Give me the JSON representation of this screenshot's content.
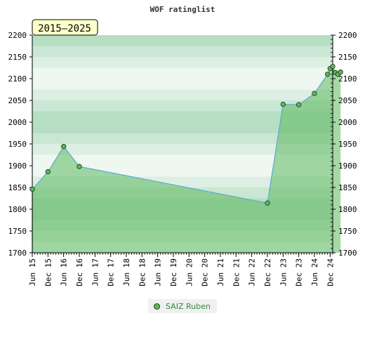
{
  "chart_data": {
    "type": "area",
    "title": "WOF ratinglist",
    "badge": "2015–2025",
    "x_ticks": [
      "Jun 15",
      "Dec 15",
      "Jun 16",
      "Dec 16",
      "Jun 17",
      "Dec 17",
      "Jun 18",
      "Dec 18",
      "Jun 19",
      "Dec 19",
      "Jun 20",
      "Dec 20",
      "Jun 21",
      "Dec 21",
      "Jun 22",
      "Dec 22",
      "Jun 23",
      "Dec 23",
      "Jun 24",
      "Dec 24"
    ],
    "y_ticks": [
      1700,
      1750,
      1800,
      1850,
      1900,
      1950,
      2000,
      2050,
      2100,
      2150,
      2200
    ],
    "ylim": [
      1700,
      2200
    ],
    "xlim": [
      "2015-06",
      "2025-01"
    ],
    "grid": true,
    "legend_position": "bottom-center",
    "series": [
      {
        "name": "SAIZ Ruben",
        "color": "#5aa9d6",
        "fill": "#5cb85c",
        "points": [
          {
            "x": "2015-06",
            "y": 1846
          },
          {
            "x": "2015-12",
            "y": 1886
          },
          {
            "x": "2016-06",
            "y": 1944
          },
          {
            "x": "2016-12",
            "y": 1898
          },
          {
            "x": "2022-12",
            "y": 1814
          },
          {
            "x": "2023-06",
            "y": 2041
          },
          {
            "x": "2023-12",
            "y": 2040
          },
          {
            "x": "2024-06",
            "y": 2066
          },
          {
            "x": "2024-11",
            "y": 2110
          },
          {
            "x": "2024-12",
            "y": 2123
          },
          {
            "x": "2025-01",
            "y": 2128
          },
          {
            "x": "2025-02",
            "y": 2114
          },
          {
            "x": "2025-03",
            "y": 2110
          },
          {
            "x": "2025-04",
            "y": 2115
          }
        ]
      }
    ]
  }
}
